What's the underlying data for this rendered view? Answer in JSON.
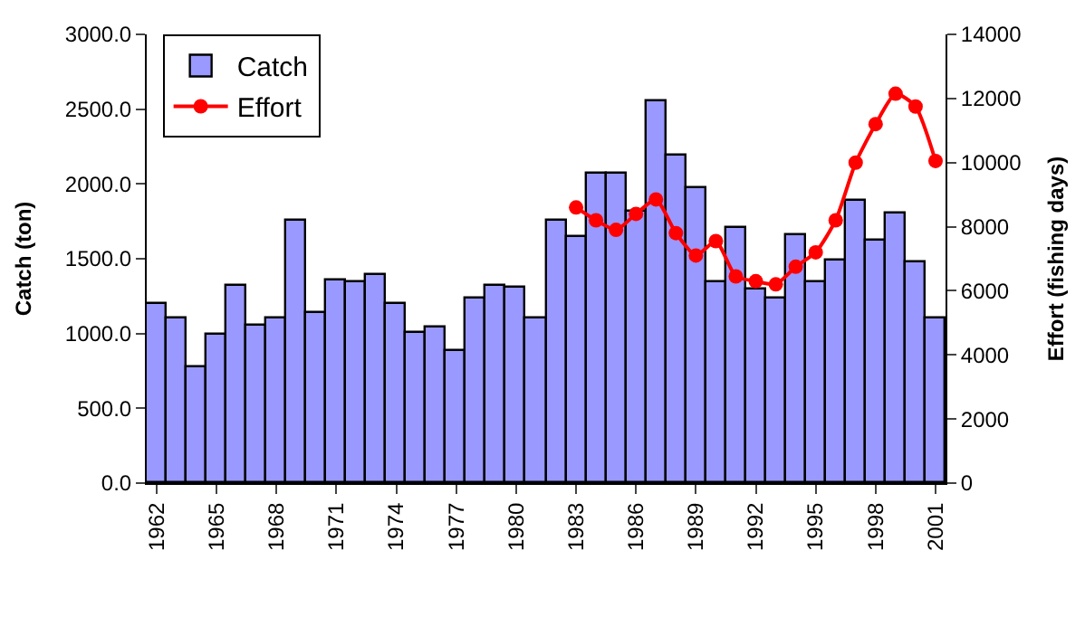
{
  "chart_data": {
    "type": "bar",
    "categories": [
      "1962",
      null,
      null,
      "1965",
      null,
      null,
      "1968",
      null,
      null,
      "1971",
      null,
      null,
      "1974",
      null,
      null,
      "1977",
      null,
      null,
      "1980",
      null,
      null,
      "1983",
      null,
      null,
      "1986",
      null,
      null,
      "1989",
      null,
      null,
      "1992",
      null,
      null,
      "1995",
      null,
      null,
      "1998",
      null,
      null,
      "2001"
    ],
    "series": [
      {
        "name": "Catch",
        "color": "#9999ff",
        "values": [
          1200,
          1100,
          770,
          990,
          1320,
          1050,
          1100,
          1750,
          1140,
          1360,
          1340,
          1390,
          1200,
          1000,
          1040,
          880,
          1230,
          1320,
          1310,
          1100,
          1750,
          1640,
          2070,
          2070,
          1810,
          2550,
          2190,
          1970,
          1340,
          1700,
          1290,
          1230,
          1660,
          1340,
          1490,
          1890,
          1620,
          1800,
          1480,
          1100
        ]
      },
      {
        "name": "Effort",
        "type": "line",
        "axis": "y2",
        "color": "#ff0000",
        "marker": "circle",
        "values": [
          null,
          null,
          null,
          null,
          null,
          null,
          null,
          null,
          null,
          null,
          null,
          null,
          null,
          null,
          null,
          null,
          null,
          null,
          null,
          null,
          null,
          8600,
          8200,
          7900,
          8400,
          8850,
          7800,
          7100,
          7550,
          6450,
          6300,
          6200,
          6750,
          7200,
          8200,
          10000,
          11200,
          12150,
          11750,
          10050
        ]
      }
    ],
    "ylabel": "Catch (ton)",
    "y2label": "Effort (fishing days)",
    "ylim": [
      0,
      3000
    ],
    "yticks": [
      {
        "value": 0,
        "label": "0.0"
      },
      {
        "value": 500,
        "label": "500.0"
      },
      {
        "value": 1000,
        "label": "1000.0"
      },
      {
        "value": 1500,
        "label": "1500.0"
      },
      {
        "value": 2000,
        "label": "2000.0"
      },
      {
        "value": 2500,
        "label": "2500.0"
      },
      {
        "value": 3000,
        "label": "3000.0"
      }
    ],
    "y2lim": [
      0,
      14000
    ],
    "y2ticks": [
      0,
      2000,
      4000,
      6000,
      8000,
      10000,
      12000,
      14000
    ],
    "legend": "top left"
  }
}
